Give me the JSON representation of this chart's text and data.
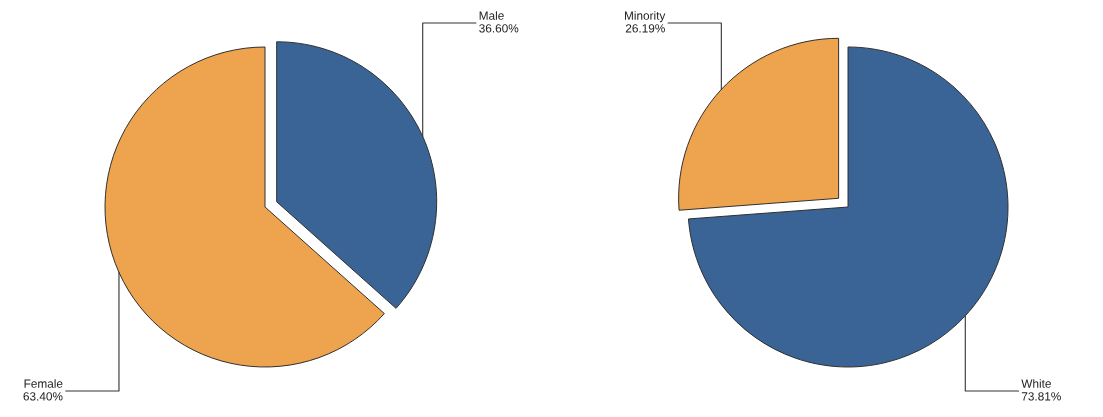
{
  "chart_data": [
    {
      "type": "pie",
      "categories": [
        "Male",
        "Female"
      ],
      "values": [
        36.6,
        63.4
      ],
      "colors": [
        "#3a6496",
        "#eea44f"
      ],
      "value_labels": [
        "36.60%",
        "63.40%"
      ]
    },
    {
      "type": "pie",
      "categories": [
        "White",
        "Minority"
      ],
      "values": [
        73.81,
        26.19
      ],
      "colors": [
        "#3a6496",
        "#eea44f"
      ],
      "value_labels": [
        "73.81%",
        "26.19%"
      ]
    }
  ]
}
